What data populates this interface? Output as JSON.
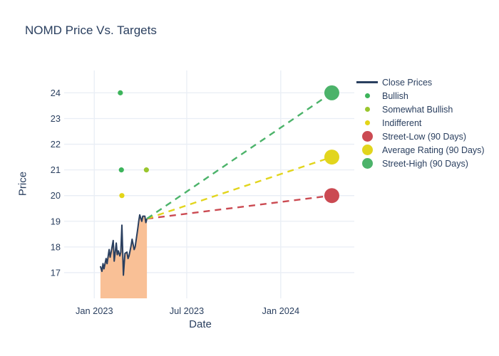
{
  "chart_data": {
    "type": "line",
    "title": "NOMD Price Vs. Targets",
    "xlabel": "Date",
    "ylabel": "Price",
    "background": "#ffffff",
    "grid_color": "#e9eef5",
    "text_color": "#2a3f5f",
    "grid": "on",
    "legend_position": "right",
    "x_range": [
      "2022-11-03",
      "2024-05-24"
    ],
    "y_range": [
      16.0,
      24.87
    ],
    "x_ticks": [
      {
        "label": "Jan 2023",
        "date": "2023-01-01"
      },
      {
        "label": "Jul 2023",
        "date": "2023-07-01"
      },
      {
        "label": "Jan 2024",
        "date": "2024-01-01"
      }
    ],
    "y_ticks": [
      17,
      18,
      19,
      20,
      21,
      22,
      23,
      24
    ],
    "close_prices": {
      "name": "Close Prices",
      "line_color": "#2a3f5f",
      "fill_color": "#f9c096",
      "points": [
        {
          "date": "2023-01-13",
          "price": 17.25
        },
        {
          "date": "2023-01-16",
          "price": 17.05
        },
        {
          "date": "2023-01-18",
          "price": 17.35
        },
        {
          "date": "2023-01-20",
          "price": 17.15
        },
        {
          "date": "2023-01-24",
          "price": 17.55
        },
        {
          "date": "2023-01-26",
          "price": 17.35
        },
        {
          "date": "2023-01-30",
          "price": 17.9
        },
        {
          "date": "2023-02-01",
          "price": 17.6
        },
        {
          "date": "2023-02-03",
          "price": 17.8
        },
        {
          "date": "2023-02-07",
          "price": 18.25
        },
        {
          "date": "2023-02-09",
          "price": 17.45
        },
        {
          "date": "2023-02-13",
          "price": 18.15
        },
        {
          "date": "2023-02-15",
          "price": 17.7
        },
        {
          "date": "2023-02-17",
          "price": 17.85
        },
        {
          "date": "2023-02-20",
          "price": 17.65
        },
        {
          "date": "2023-02-22",
          "price": 17.8
        },
        {
          "date": "2023-02-24",
          "price": 18.85
        },
        {
          "date": "2023-02-27",
          "price": 16.9
        },
        {
          "date": "2023-03-02",
          "price": 17.75
        },
        {
          "date": "2023-03-06",
          "price": 17.8
        },
        {
          "date": "2023-03-08",
          "price": 17.55
        },
        {
          "date": "2023-03-10",
          "price": 17.65
        },
        {
          "date": "2023-03-14",
          "price": 18.05
        },
        {
          "date": "2023-03-16",
          "price": 18.3
        },
        {
          "date": "2023-03-20",
          "price": 17.9
        },
        {
          "date": "2023-03-22",
          "price": 18.0
        },
        {
          "date": "2023-03-27",
          "price": 18.7
        },
        {
          "date": "2023-03-29",
          "price": 19.0
        },
        {
          "date": "2023-03-31",
          "price": 19.25
        },
        {
          "date": "2023-04-04",
          "price": 19.0
        },
        {
          "date": "2023-04-06",
          "price": 19.2
        },
        {
          "date": "2023-04-10",
          "price": 19.2
        },
        {
          "date": "2023-04-12",
          "price": 18.95
        },
        {
          "date": "2023-04-14",
          "price": 19.1
        }
      ]
    },
    "ratings": [
      {
        "name": "Bullish",
        "color": "#3db45b",
        "points": [
          {
            "date": "2023-02-21",
            "price": 24.0
          },
          {
            "date": "2023-02-23",
            "price": 21.0
          }
        ]
      },
      {
        "name": "Somewhat Bullish",
        "color": "#9ac62e",
        "points": [
          {
            "date": "2023-04-13",
            "price": 21.0
          }
        ]
      },
      {
        "name": "Indifferent",
        "color": "#e3d518",
        "points": [
          {
            "date": "2023-02-24",
            "price": 20.0
          }
        ]
      }
    ],
    "targets": {
      "origin": {
        "date": "2023-04-14",
        "price": 19.1
      },
      "target_date": "2024-04-10",
      "items": [
        {
          "name": "Street-Low (90 Days)",
          "price": 20.0,
          "color": "#cb4a52"
        },
        {
          "name": "Average Rating (90 Days)",
          "price": 21.5,
          "color": "#e2d51d"
        },
        {
          "name": "Street-High (90 Days)",
          "price": 24.0,
          "color": "#4cb36a"
        }
      ]
    },
    "legend": [
      {
        "label": "Close Prices",
        "marker": "line",
        "color": "#2a3f5f"
      },
      {
        "label": "Bullish",
        "marker": "dot",
        "color": "#3db45b"
      },
      {
        "label": "Somewhat Bullish",
        "marker": "dot",
        "color": "#9ac62e"
      },
      {
        "label": "Indifferent",
        "marker": "dot",
        "color": "#e3d518"
      },
      {
        "label": "Street-Low (90 Days)",
        "marker": "big-dot",
        "color": "#cb4a52"
      },
      {
        "label": "Average Rating (90 Days)",
        "marker": "big-dot",
        "color": "#e2d51d"
      },
      {
        "label": "Street-High (90 Days)",
        "marker": "big-dot",
        "color": "#4cb36a"
      }
    ]
  }
}
